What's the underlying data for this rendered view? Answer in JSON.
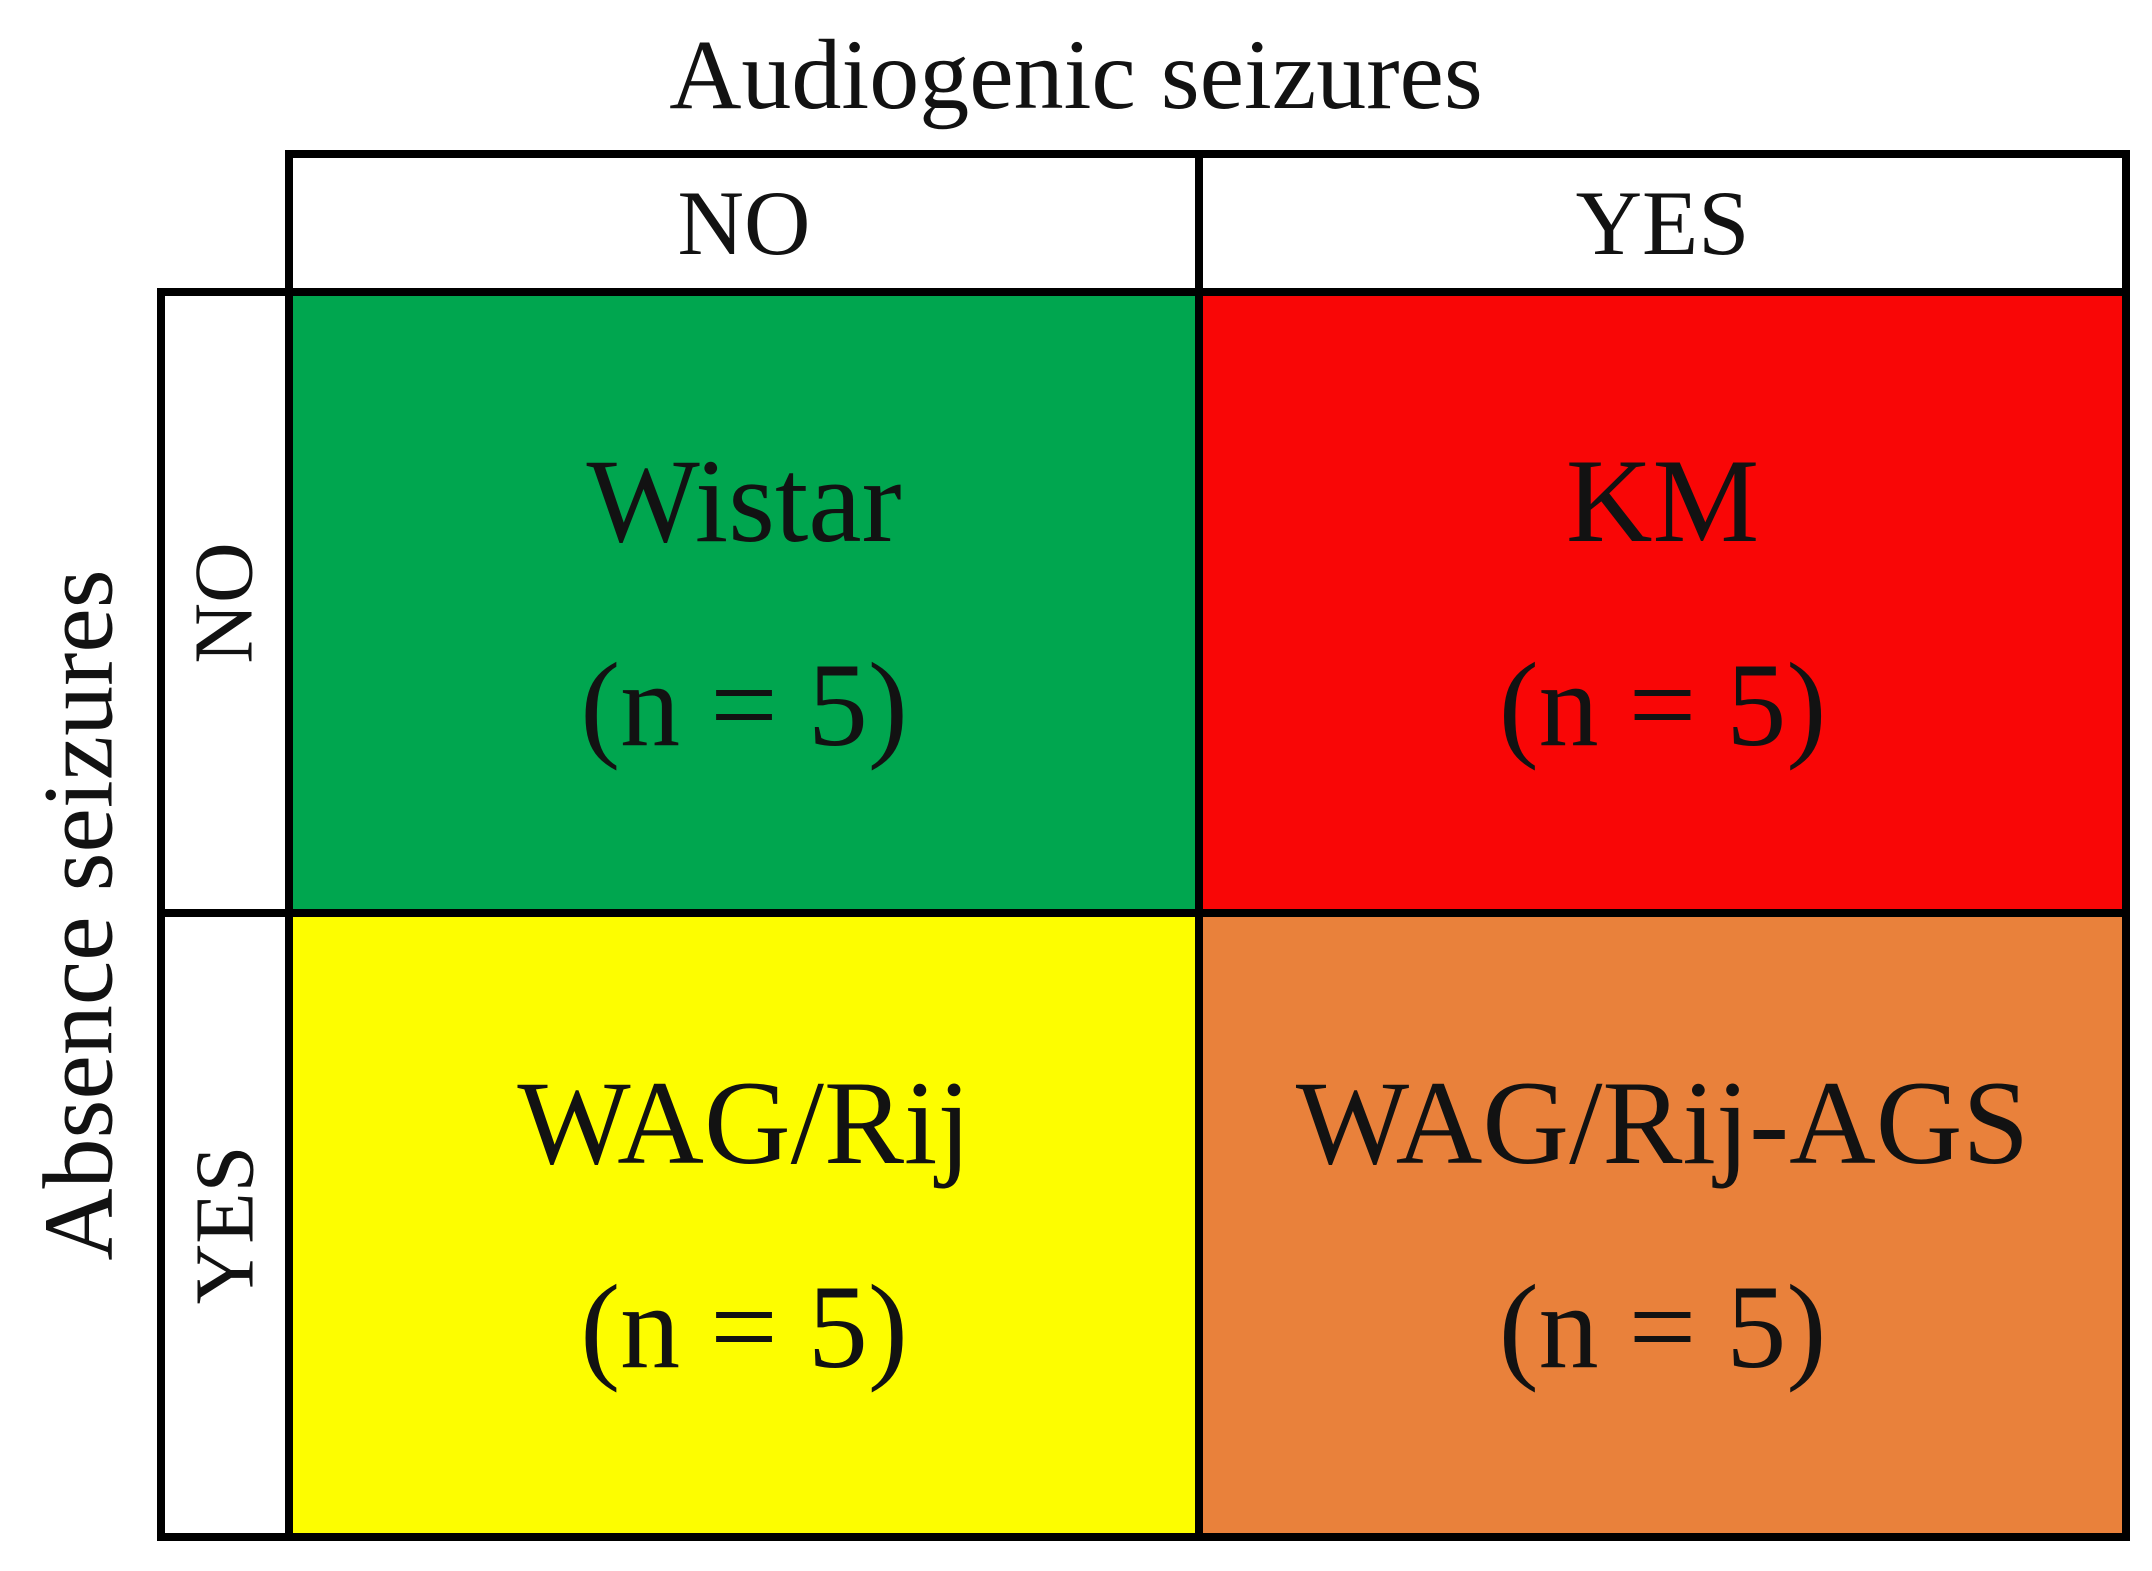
{
  "title": "Audiogenic seizures",
  "row_axis_label": "Absence seizures",
  "column_headers": [
    "NO",
    "YES"
  ],
  "row_headers": [
    "NO",
    "YES"
  ],
  "cells": [
    {
      "row_label": "NO",
      "column_label": "NO",
      "strain": "Wistar",
      "count_label": "(n = 5)",
      "color": "#00A64F"
    },
    {
      "row_label": "NO",
      "column_label": "YES",
      "strain": "KM",
      "count_label": "(n = 5)",
      "color": "#F90606"
    },
    {
      "row_label": "YES",
      "column_label": "NO",
      "strain": "WAG/Rij",
      "count_label": "(n = 5)",
      "color": "#FDFD00"
    },
    {
      "row_label": "YES",
      "column_label": "YES",
      "strain": "WAG/Rij-AGS",
      "count_label": "(n = 5)",
      "color": "#E9813B"
    }
  ],
  "colors": {
    "border": "#000000",
    "background": "#FFFFFF",
    "text": "#121212"
  }
}
